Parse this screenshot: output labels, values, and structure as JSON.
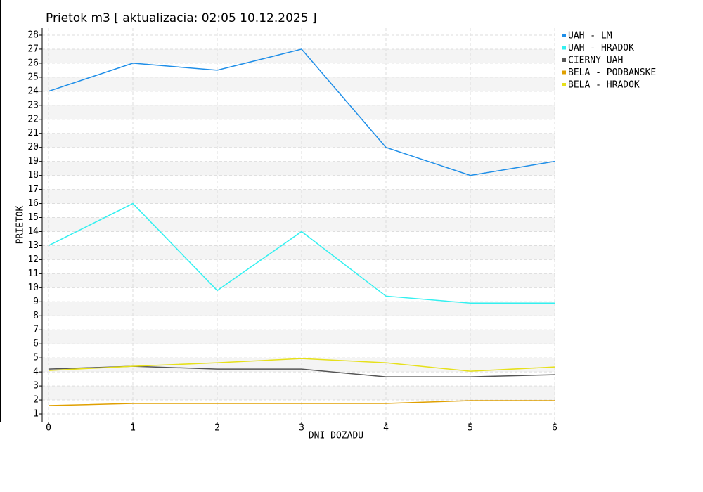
{
  "chart_data": {
    "type": "line",
    "title": "Prietok m3 [ aktualizacia:  02:05 10.12.2025 ]",
    "x_label": "DNI DOZADU",
    "y_label": "PRIETOK",
    "x": [
      0,
      1,
      2,
      3,
      4,
      5,
      6
    ],
    "xlim": [
      -0.075,
      6
    ],
    "xticks": [
      0,
      1,
      2,
      3,
      4,
      5,
      6
    ],
    "ylim": [
      0.45,
      28.5
    ],
    "yticks": [
      1,
      2,
      3,
      4,
      5,
      6,
      7,
      8,
      9,
      10,
      11,
      12,
      13,
      14,
      15,
      16,
      17,
      18,
      19,
      20,
      21,
      22,
      23,
      24,
      25,
      26,
      27,
      28
    ],
    "grid": true,
    "legend": "right",
    "series": [
      {
        "name": "UAH - LM",
        "color": "#1e8ee8",
        "values": [
          24,
          26,
          25.5,
          27,
          20,
          18,
          19
        ]
      },
      {
        "name": "UAH - HRADOK",
        "color": "#33f0f0",
        "values": [
          13,
          16,
          9.8,
          14,
          9.4,
          8.9,
          8.9
        ]
      },
      {
        "name": "CIERNY UAH",
        "color": "#555555",
        "values": [
          4.2,
          4.4,
          4.2,
          4.2,
          3.65,
          3.65,
          3.8
        ]
      },
      {
        "name": "BELA - PODBANSKE",
        "color": "#e0a000",
        "values": [
          1.6,
          1.75,
          1.75,
          1.75,
          1.75,
          1.95,
          1.95
        ]
      },
      {
        "name": "BELA - HRADOK",
        "color": "#e6e01a",
        "values": [
          4.1,
          4.4,
          4.65,
          4.95,
          4.65,
          4.05,
          4.35
        ]
      }
    ]
  }
}
